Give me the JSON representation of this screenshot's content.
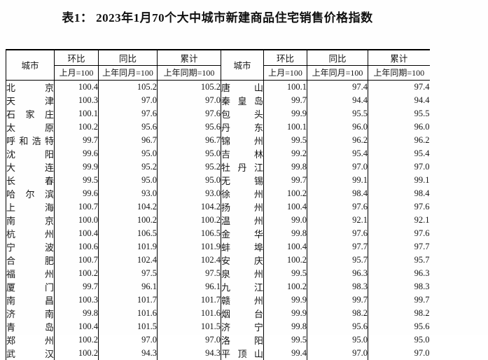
{
  "title": "表1： 2023年1月70个大中城市新建商品住宅销售价格指数",
  "table": {
    "header": {
      "city": "城市",
      "mom": "环比",
      "mom_base": "上月=100",
      "yoy": "同比",
      "yoy_base": "上年同月=100",
      "cum": "累计",
      "cum_base": "上年同期=100"
    },
    "left_rows": [
      {
        "city": "北京",
        "mom": "100.4",
        "yoy": "105.2",
        "cum": "105.2"
      },
      {
        "city": "天津",
        "mom": "100.3",
        "yoy": "97.0",
        "cum": "97.0"
      },
      {
        "city": "石家庄",
        "mom": "100.1",
        "yoy": "97.6",
        "cum": "97.6"
      },
      {
        "city": "太原",
        "mom": "100.2",
        "yoy": "95.6",
        "cum": "95.6"
      },
      {
        "city": "呼和浩特",
        "mom": "99.7",
        "yoy": "96.7",
        "cum": "96.7"
      },
      {
        "city": "沈阳",
        "mom": "99.6",
        "yoy": "95.0",
        "cum": "95.0"
      },
      {
        "city": "大连",
        "mom": "99.9",
        "yoy": "95.2",
        "cum": "95.2"
      },
      {
        "city": "长春",
        "mom": "99.5",
        "yoy": "95.0",
        "cum": "95.0"
      },
      {
        "city": "哈尔滨",
        "mom": "99.6",
        "yoy": "93.0",
        "cum": "93.0"
      },
      {
        "city": "上海",
        "mom": "100.7",
        "yoy": "104.2",
        "cum": "104.2"
      },
      {
        "city": "南京",
        "mom": "100.0",
        "yoy": "100.2",
        "cum": "100.2"
      },
      {
        "city": "杭州",
        "mom": "100.4",
        "yoy": "106.5",
        "cum": "106.5"
      },
      {
        "city": "宁波",
        "mom": "100.6",
        "yoy": "101.9",
        "cum": "101.9"
      },
      {
        "city": "合肥",
        "mom": "100.7",
        "yoy": "102.4",
        "cum": "102.4"
      },
      {
        "city": "福州",
        "mom": "100.2",
        "yoy": "97.5",
        "cum": "97.5"
      },
      {
        "city": "厦门",
        "mom": "99.7",
        "yoy": "96.1",
        "cum": "96.1"
      },
      {
        "city": "南昌",
        "mom": "100.3",
        "yoy": "101.7",
        "cum": "101.7"
      },
      {
        "city": "济南",
        "mom": "99.8",
        "yoy": "101.6",
        "cum": "101.6"
      },
      {
        "city": "青岛",
        "mom": "100.4",
        "yoy": "101.5",
        "cum": "101.5"
      },
      {
        "city": "郑州",
        "mom": "100.2",
        "yoy": "97.0",
        "cum": "97.0"
      },
      {
        "city": "武汉",
        "mom": "100.2",
        "yoy": "94.3",
        "cum": "94.3"
      }
    ],
    "right_rows": [
      {
        "city": "唐山",
        "mom": "100.1",
        "yoy": "97.4",
        "cum": "97.4"
      },
      {
        "city": "秦皇岛",
        "mom": "99.7",
        "yoy": "94.4",
        "cum": "94.4"
      },
      {
        "city": "包头",
        "mom": "99.9",
        "yoy": "95.5",
        "cum": "95.5"
      },
      {
        "city": "丹东",
        "mom": "100.1",
        "yoy": "96.0",
        "cum": "96.0"
      },
      {
        "city": "锦州",
        "mom": "99.5",
        "yoy": "96.2",
        "cum": "96.2"
      },
      {
        "city": "吉林",
        "mom": "99.2",
        "yoy": "95.4",
        "cum": "95.4"
      },
      {
        "city": "牡丹江",
        "mom": "99.8",
        "yoy": "97.0",
        "cum": "97.0"
      },
      {
        "city": "无锡",
        "mom": "99.7",
        "yoy": "99.1",
        "cum": "99.1"
      },
      {
        "city": "徐州",
        "mom": "100.2",
        "yoy": "98.4",
        "cum": "98.4"
      },
      {
        "city": "扬州",
        "mom": "100.4",
        "yoy": "97.6",
        "cum": "97.6"
      },
      {
        "city": "温州",
        "mom": "99.0",
        "yoy": "92.1",
        "cum": "92.1"
      },
      {
        "city": "金华",
        "mom": "99.8",
        "yoy": "97.6",
        "cum": "97.6"
      },
      {
        "city": "蚌埠",
        "mom": "100.4",
        "yoy": "97.7",
        "cum": "97.7"
      },
      {
        "city": "安庆",
        "mom": "100.2",
        "yoy": "95.7",
        "cum": "95.7"
      },
      {
        "city": "泉州",
        "mom": "99.5",
        "yoy": "96.3",
        "cum": "96.3"
      },
      {
        "city": "九江",
        "mom": "100.2",
        "yoy": "98.3",
        "cum": "98.3"
      },
      {
        "city": "赣州",
        "mom": "99.9",
        "yoy": "99.7",
        "cum": "99.7"
      },
      {
        "city": "烟台",
        "mom": "99.9",
        "yoy": "98.2",
        "cum": "98.2"
      },
      {
        "city": "济宁",
        "mom": "99.8",
        "yoy": "95.6",
        "cum": "95.6"
      },
      {
        "city": "洛阳",
        "mom": "99.5",
        "yoy": "95.0",
        "cum": "95.0"
      },
      {
        "city": "平顶山",
        "mom": "99.4",
        "yoy": "97.0",
        "cum": "97.0"
      }
    ]
  },
  "colors": {
    "text": "#151515",
    "rule": "#000000",
    "background": "#fefefe"
  }
}
